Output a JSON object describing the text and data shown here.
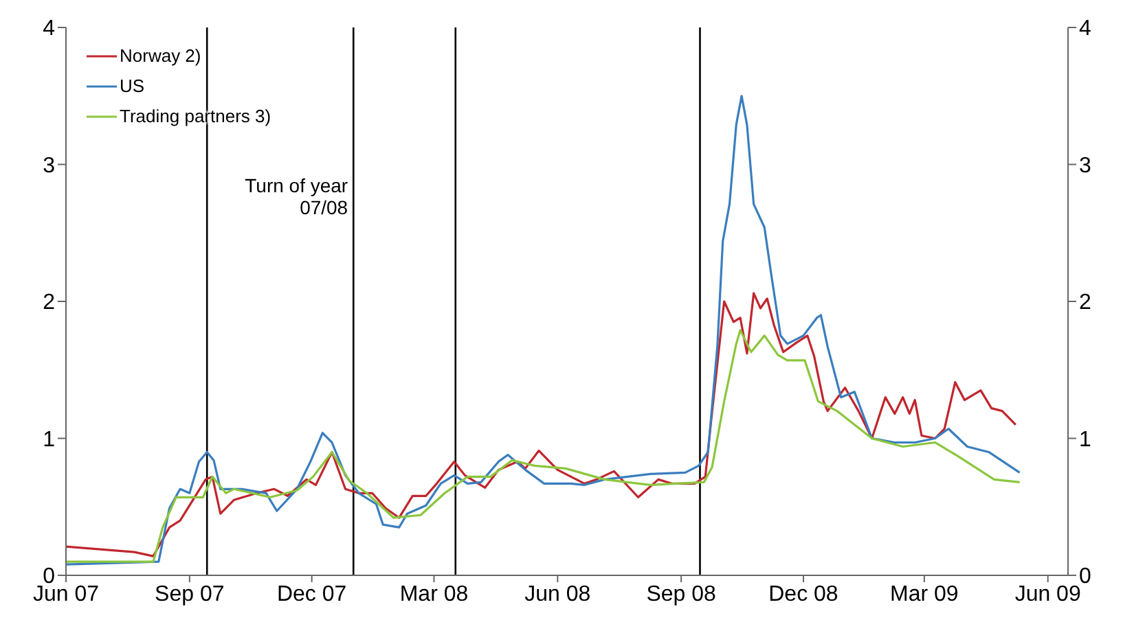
{
  "chart_data": {
    "type": "line",
    "series": [
      {
        "name": "Norway 2)",
        "color": "#c0262d",
        "x": [
          "2007-06-01",
          "2007-07-22",
          "2007-08-05",
          "2007-08-17",
          "2007-08-25",
          "2007-09-13",
          "2007-09-18",
          "2007-09-24",
          "2007-10-04",
          "2007-10-21",
          "2007-11-03",
          "2007-11-13",
          "2007-11-27",
          "2007-12-04",
          "2007-12-16",
          "2007-12-26",
          "2008-01-05",
          "2008-01-15",
          "2008-01-25",
          "2008-02-04",
          "2008-02-14",
          "2008-02-24",
          "2008-03-03",
          "2008-03-16",
          "2008-03-24",
          "2008-04-08",
          "2008-04-18",
          "2008-05-02",
          "2008-05-08",
          "2008-05-18",
          "2008-06-01",
          "2008-06-21",
          "2008-06-30",
          "2008-07-13",
          "2008-07-31",
          "2008-08-15",
          "2008-08-25",
          "2008-09-11",
          "2008-09-19",
          "2008-09-23",
          "2008-10-03",
          "2008-10-10",
          "2008-10-15",
          "2008-10-20",
          "2008-10-25",
          "2008-10-30",
          "2008-11-04",
          "2008-11-09",
          "2008-11-16",
          "2008-11-26",
          "2008-12-04",
          "2008-12-09",
          "2008-12-16",
          "2008-12-19",
          "2009-01-01",
          "2009-01-11",
          "2009-01-21",
          "2009-01-31",
          "2009-02-07",
          "2009-02-13",
          "2009-02-18",
          "2009-02-22",
          "2009-02-27",
          "2009-03-09",
          "2009-03-16",
          "2009-03-24",
          "2009-03-31",
          "2009-04-12",
          "2009-04-20",
          "2009-04-28",
          "2009-05-08"
        ],
        "values": [
          0.21,
          0.17,
          0.14,
          0.35,
          0.4,
          0.7,
          0.72,
          0.45,
          0.55,
          0.6,
          0.63,
          0.58,
          0.7,
          0.66,
          0.9,
          0.63,
          0.6,
          0.6,
          0.49,
          0.42,
          0.58,
          0.58,
          0.67,
          0.83,
          0.73,
          0.64,
          0.77,
          0.83,
          0.78,
          0.91,
          0.77,
          0.67,
          0.7,
          0.76,
          0.57,
          0.7,
          0.67,
          0.67,
          0.72,
          1.1,
          2.0,
          1.85,
          1.88,
          1.62,
          2.06,
          1.95,
          2.02,
          1.83,
          1.63,
          1.7,
          1.75,
          1.6,
          1.27,
          1.2,
          1.37,
          1.2,
          1.0,
          1.3,
          1.18,
          1.3,
          1.18,
          1.28,
          1.02,
          1.0,
          1.07,
          1.41,
          1.28,
          1.35,
          1.22,
          1.2,
          1.1
        ]
      },
      {
        "name": "US",
        "color": "#3a7ebf",
        "x": [
          "2007-06-01",
          "2007-08-09",
          "2007-08-17",
          "2007-08-25",
          "2007-09-01",
          "2007-09-08",
          "2007-09-14",
          "2007-09-19",
          "2007-09-24",
          "2007-10-10",
          "2007-10-28",
          "2007-11-05",
          "2007-11-20",
          "2007-11-30",
          "2007-12-09",
          "2007-12-16",
          "2007-12-26",
          "2008-01-05",
          "2008-01-18",
          "2008-01-23",
          "2008-02-04",
          "2008-02-10",
          "2008-02-24",
          "2008-03-06",
          "2008-03-16",
          "2008-03-26",
          "2008-04-05",
          "2008-04-18",
          "2008-04-25",
          "2008-05-08",
          "2008-05-22",
          "2008-06-11",
          "2008-06-21",
          "2008-07-06",
          "2008-08-09",
          "2008-09-04",
          "2008-09-14",
          "2008-09-21",
          "2008-09-28",
          "2008-10-02",
          "2008-10-07",
          "2008-10-12",
          "2008-10-16",
          "2008-10-20",
          "2008-10-25",
          "2008-11-02",
          "2008-11-07",
          "2008-11-14",
          "2008-11-19",
          "2008-12-01",
          "2008-12-11",
          "2008-12-14",
          "2008-12-19",
          "2008-12-29",
          "2009-01-08",
          "2009-01-21",
          "2009-02-07",
          "2009-02-22",
          "2009-03-09",
          "2009-03-19",
          "2009-04-02",
          "2009-04-18",
          "2009-05-11"
        ],
        "values": [
          0.08,
          0.1,
          0.49,
          0.63,
          0.6,
          0.83,
          0.9,
          0.84,
          0.63,
          0.63,
          0.6,
          0.47,
          0.63,
          0.83,
          1.04,
          0.97,
          0.73,
          0.6,
          0.52,
          0.37,
          0.35,
          0.45,
          0.51,
          0.67,
          0.73,
          0.67,
          0.68,
          0.83,
          0.88,
          0.77,
          0.67,
          0.67,
          0.66,
          0.7,
          0.74,
          0.75,
          0.8,
          0.9,
          1.68,
          2.44,
          2.71,
          3.29,
          3.5,
          3.29,
          2.71,
          2.54,
          2.2,
          1.75,
          1.69,
          1.75,
          1.88,
          1.9,
          1.67,
          1.3,
          1.34,
          1.0,
          0.97,
          0.97,
          1.0,
          1.07,
          0.94,
          0.9,
          0.75
        ]
      },
      {
        "name": "Trading partners 3)",
        "color": "#8cc63e",
        "x": [
          "2007-06-01",
          "2007-08-05",
          "2007-08-12",
          "2007-08-22",
          "2007-09-11",
          "2007-09-18",
          "2007-09-28",
          "2007-10-04",
          "2007-10-31",
          "2007-11-20",
          "2007-12-02",
          "2007-12-16",
          "2007-12-29",
          "2008-01-11",
          "2008-01-31",
          "2008-02-20",
          "2008-03-09",
          "2008-03-26",
          "2008-04-12",
          "2008-04-28",
          "2008-05-15",
          "2008-06-07",
          "2008-07-06",
          "2008-08-09",
          "2008-09-18",
          "2008-09-24",
          "2008-10-03",
          "2008-10-12",
          "2008-10-15",
          "2008-10-23",
          "2008-11-02",
          "2008-11-12",
          "2008-11-19",
          "2008-12-02",
          "2008-12-12",
          "2008-12-26",
          "2009-01-21",
          "2009-02-13",
          "2009-03-09",
          "2009-03-26",
          "2009-04-22",
          "2009-05-11"
        ],
        "values": [
          0.1,
          0.1,
          0.35,
          0.57,
          0.57,
          0.72,
          0.6,
          0.63,
          0.57,
          0.62,
          0.72,
          0.9,
          0.69,
          0.6,
          0.42,
          0.44,
          0.6,
          0.72,
          0.72,
          0.84,
          0.8,
          0.78,
          0.7,
          0.66,
          0.68,
          0.79,
          1.27,
          1.69,
          1.79,
          1.63,
          1.75,
          1.61,
          1.57,
          1.57,
          1.27,
          1.2,
          1.0,
          0.94,
          0.97,
          0.87,
          0.7,
          0.68
        ]
      }
    ],
    "xlim": [
      "2007-06-01",
      "2009-06-16"
    ],
    "xticks": [
      {
        "value": "2007-06-01",
        "label": "Jun 07"
      },
      {
        "value": "2007-09-01",
        "label": "Sep 07"
      },
      {
        "value": "2007-12-01",
        "label": "Dec 07"
      },
      {
        "value": "2008-03-01",
        "label": "Mar 08"
      },
      {
        "value": "2008-06-01",
        "label": "Jun 08"
      },
      {
        "value": "2008-09-01",
        "label": "Sep 08"
      },
      {
        "value": "2008-12-01",
        "label": "Dec 08"
      },
      {
        "value": "2009-03-01",
        "label": "Mar 09"
      },
      {
        "value": "2009-06-01",
        "label": "Jun 09"
      }
    ],
    "ylim": [
      0,
      4
    ],
    "yticks": [
      0,
      1,
      2,
      3,
      4
    ],
    "y2lim": [
      0,
      4
    ],
    "y2ticks": [
      0,
      1,
      2,
      3,
      4
    ],
    "ref_lines": [
      {
        "axis": "x",
        "value": "2007-09-14",
        "color": "#000000"
      },
      {
        "axis": "x",
        "value": "2008-01-01",
        "label": "Turn of year 07/08",
        "color": "#000000"
      },
      {
        "axis": "x",
        "value": "2008-03-17",
        "color": "#000000"
      },
      {
        "axis": "x",
        "value": "2008-09-15",
        "color": "#000000"
      }
    ],
    "legend": "top left",
    "grid": false,
    "marker": "none",
    "line_style": "solid"
  }
}
